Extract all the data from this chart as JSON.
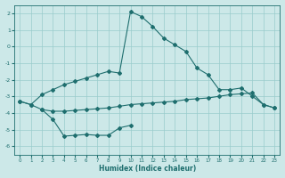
{
  "xlabel": "Humidex (Indice chaleur)",
  "bg_color": "#cce8e8",
  "line_color": "#1e6e6e",
  "grid_color": "#99cccc",
  "xlim": [
    -0.5,
    23.5
  ],
  "ylim": [
    -6.5,
    2.5
  ],
  "yticks": [
    -6,
    -5,
    -4,
    -3,
    -2,
    -1,
    0,
    1,
    2
  ],
  "xticks": [
    0,
    1,
    2,
    3,
    4,
    5,
    6,
    7,
    8,
    9,
    10,
    11,
    12,
    13,
    14,
    15,
    16,
    17,
    18,
    19,
    20,
    21,
    22,
    23
  ],
  "line1_x": [
    0,
    1,
    2,
    3,
    4,
    5,
    6,
    7,
    8,
    9,
    10,
    11,
    12,
    13,
    14,
    15,
    16,
    17,
    18,
    19,
    20,
    21,
    22,
    23
  ],
  "line1_y": [
    -3.3,
    -3.5,
    -2.9,
    -2.6,
    -2.3,
    -2.1,
    -1.9,
    -1.7,
    -1.5,
    -1.6,
    2.1,
    1.8,
    1.2,
    0.5,
    0.1,
    -0.3,
    -1.3,
    -1.7,
    -2.6,
    -2.6,
    -2.5,
    -3.0,
    -3.5,
    -3.7
  ],
  "line2_x": [
    0,
    1,
    2,
    3,
    4,
    5,
    6,
    7,
    8,
    9,
    10,
    11,
    12,
    13,
    14,
    15,
    16,
    17,
    18,
    19,
    20,
    21,
    22,
    23
  ],
  "line2_y": [
    -3.3,
    -3.5,
    -3.8,
    -3.9,
    -3.9,
    -3.85,
    -3.8,
    -3.75,
    -3.7,
    -3.6,
    -3.5,
    -3.45,
    -3.4,
    -3.35,
    -3.3,
    -3.2,
    -3.15,
    -3.1,
    -3.0,
    -2.9,
    -2.85,
    -2.8,
    -3.5,
    -3.7
  ],
  "line3_x": [
    2,
    3,
    4,
    5,
    6,
    7,
    8,
    9,
    10,
    11,
    12,
    13
  ],
  "line3_y": [
    -3.8,
    -4.4,
    -5.4,
    -5.35,
    -5.3,
    -5.35,
    -5.35,
    -4.9,
    -4.75,
    null,
    null,
    null
  ]
}
